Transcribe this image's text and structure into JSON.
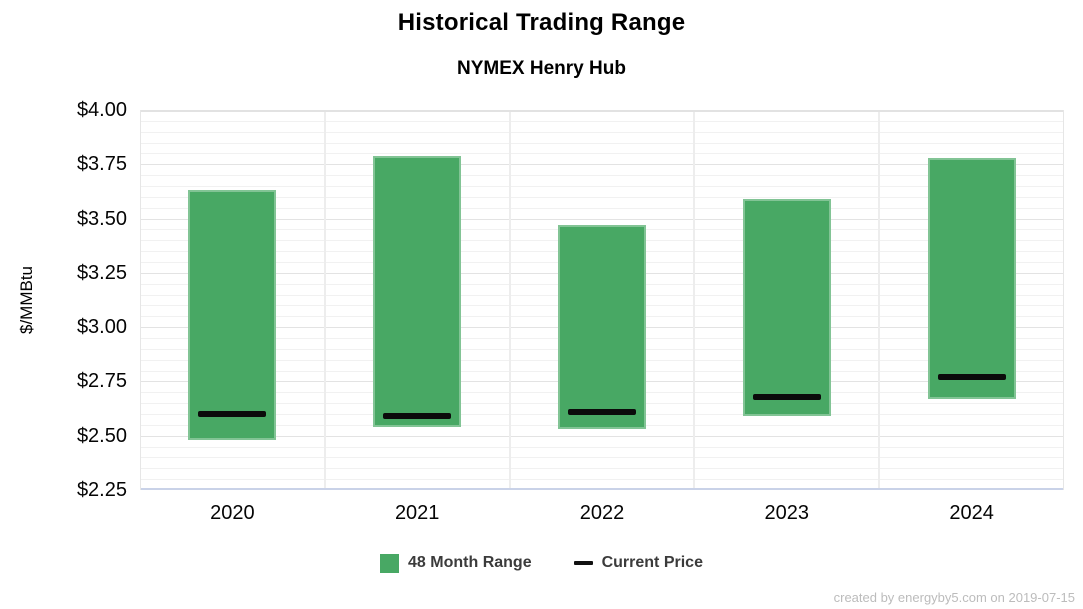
{
  "header": {
    "title": "Historical Trading Range",
    "subtitle": "NYMEX Henry Hub"
  },
  "legend": {
    "items": [
      {
        "label": "48 Month Range",
        "marker": "square",
        "color": "#48a864"
      },
      {
        "label": "Current Price",
        "marker": "dash",
        "color": "#111111"
      }
    ]
  },
  "footer": {
    "credit": "created by energyby5.com on 2019-07-15"
  },
  "colors": {
    "bar_green": "#48a864",
    "current_price_black": "#0b0b0b",
    "grid_minor": "#f1f1f1",
    "grid_major": "#e3e3e3",
    "plot_bottom_border": "#c9d2e8",
    "footer_gray": "#bcbcbc"
  },
  "chart_data": {
    "type": "bar",
    "title": "Historical Trading Range",
    "subtitle": "NYMEX Henry Hub",
    "xlabel": "",
    "ylabel": "$/MMBtu",
    "categories": [
      "2020",
      "2021",
      "2022",
      "2023",
      "2024"
    ],
    "series": [
      {
        "name": "48 Month Range",
        "role": "range-bar",
        "color": "#48a864",
        "low": [
          2.48,
          2.54,
          2.53,
          2.59,
          2.67
        ],
        "high": [
          3.63,
          3.79,
          3.47,
          3.59,
          3.78
        ]
      },
      {
        "name": "Current Price",
        "role": "marker-line",
        "color": "#111111",
        "values": [
          2.6,
          2.59,
          2.61,
          2.68,
          2.77
        ]
      }
    ],
    "ylim": [
      2.25,
      4.0
    ],
    "ytick_step": 0.25,
    "minor_step": 0.05,
    "yticks": [
      {
        "value": 4.0,
        "label": "$4.00"
      },
      {
        "value": 3.75,
        "label": "$3.75"
      },
      {
        "value": 3.5,
        "label": "$3.50"
      },
      {
        "value": 3.25,
        "label": "$3.25"
      },
      {
        "value": 3.0,
        "label": "$3.00"
      },
      {
        "value": 2.75,
        "label": "$2.75"
      },
      {
        "value": 2.5,
        "label": "$2.50"
      },
      {
        "value": 2.25,
        "label": "$2.25"
      }
    ],
    "grid": true,
    "legend_position": "bottom"
  }
}
